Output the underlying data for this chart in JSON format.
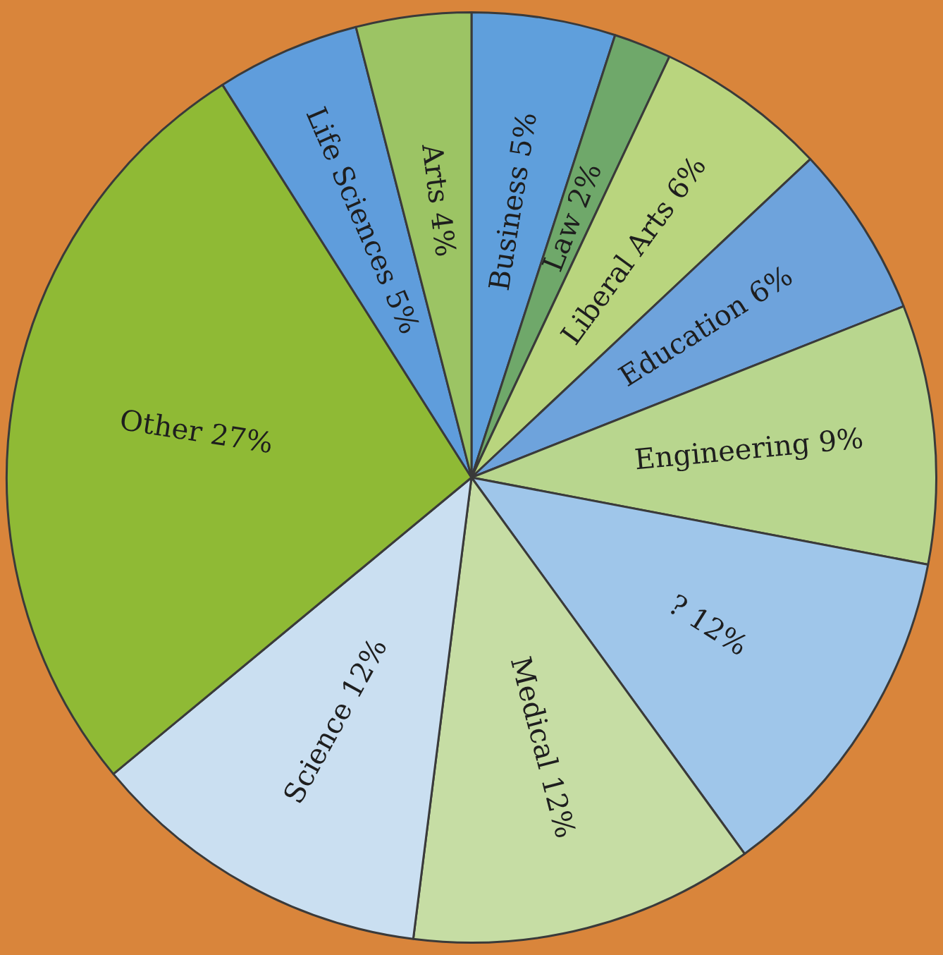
{
  "chart_data": {
    "type": "pie",
    "categories": [
      "Business",
      "Law",
      "Liberal Arts",
      "Education",
      "Engineering",
      "?",
      "Medical",
      "Science",
      "Other",
      "Life Sciences",
      "Arts"
    ],
    "values": [
      5,
      2,
      6,
      6,
      9,
      12,
      12,
      12,
      27,
      5,
      4
    ],
    "value_labels": [
      "5%",
      "2%",
      "6%",
      "6%",
      "9%",
      "12%",
      "12%",
      "12%",
      "27%",
      "5%",
      "4%"
    ],
    "colors": [
      "#5f9fdc",
      "#6fa86a",
      "#b9d57e",
      "#6ea3dc",
      "#b8d68e",
      "#9fc6ea",
      "#c6dda4",
      "#cadff1",
      "#8fba35",
      "#5f9ddc",
      "#9cc464"
    ],
    "legend": false
  }
}
